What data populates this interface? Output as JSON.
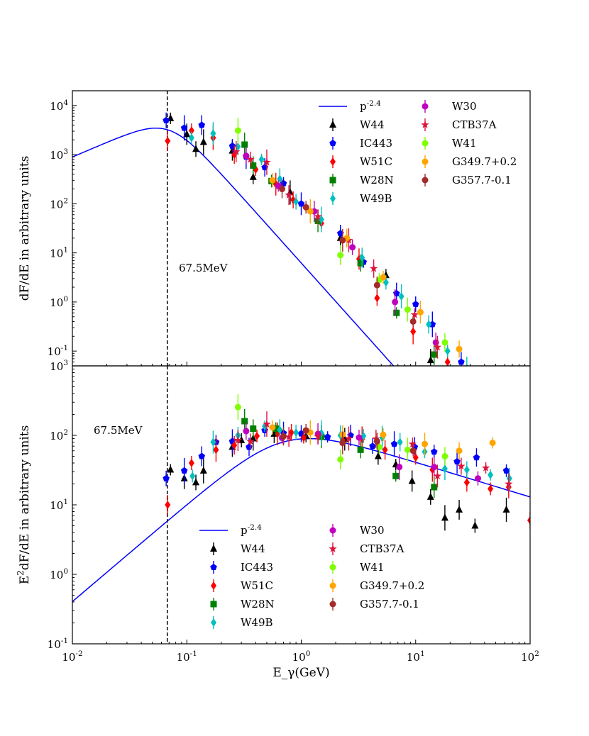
{
  "chart_data": [
    {
      "type": "scatter",
      "panel": "top",
      "ylabel": "dF/dE in arbitrary units",
      "xlabel": "",
      "xscale": "log",
      "yscale": "log",
      "xlim": [
        0.01,
        100
      ],
      "ylim": [
        0.05,
        20000
      ],
      "x_ticks": [
        "10^{-2}",
        "10^{-1}",
        "10^{0}",
        "10^{1}",
        "10^{2}"
      ],
      "y_ticks": [
        {
          "value": 0.1,
          "label": "10^{-1}"
        },
        {
          "value": 1,
          "label": "10^{0}"
        },
        {
          "value": 10,
          "label": "10^{1}"
        },
        {
          "value": 100,
          "label": "10^{2}"
        },
        {
          "value": 1000,
          "label": "10^{3}"
        },
        {
          "value": 10000,
          "label": "10^{4}"
        }
      ],
      "cutoff_energy_gev": 0.0675,
      "annotation": "67.5MeV",
      "legend_position": "top-right",
      "model": {
        "name": "p^{-2.4}",
        "color": "#0000ff",
        "type": "line"
      },
      "series": [
        {
          "name": "W44",
          "marker": "triangle",
          "color": "#000000",
          "points": [
            [
              0.072,
              5500
            ],
            [
              0.1,
              2600
            ],
            [
              0.12,
              1300
            ],
            [
              0.14,
              1800
            ],
            [
              0.25,
              1200
            ],
            [
              0.38,
              350
            ],
            [
              0.8,
              170
            ],
            [
              2.2,
              20
            ],
            [
              5.5,
              3.5
            ],
            [
              13.5,
              0.065
            ]
          ]
        },
        {
          "name": "IC443",
          "marker": "pentagon",
          "color": "#0000ff",
          "points": [
            [
              0.066,
              5000
            ],
            [
              0.095,
              3500
            ],
            [
              0.135,
              4000
            ],
            [
              0.25,
              1500
            ],
            [
              0.33,
              900
            ],
            [
              0.48,
              550
            ],
            [
              0.7,
              260
            ],
            [
              1.0,
              100
            ],
            [
              2.2,
              25
            ],
            [
              3.5,
              6.5
            ],
            [
              6.8,
              1.5
            ],
            [
              10,
              0.9
            ],
            [
              14,
              0.35
            ],
            [
              25,
              0.06
            ]
          ]
        },
        {
          "name": "W51C",
          "marker": "diamond",
          "color": "#ff0000",
          "points": [
            [
              0.068,
              1900
            ],
            [
              0.11,
              3100
            ],
            [
              0.17,
              2200
            ],
            [
              0.26,
              1000
            ],
            [
              0.4,
              500
            ],
            [
              0.6,
              250
            ],
            [
              0.85,
              120
            ],
            [
              1.5,
              40
            ],
            [
              3.2,
              7.5
            ],
            [
              4.6,
              1.2
            ],
            [
              9.5,
              0.25
            ],
            [
              19,
              0.06
            ]
          ]
        },
        {
          "name": "W28N",
          "marker": "square",
          "color": "#008000",
          "points": [
            [
              0.32,
              1600
            ],
            [
              0.38,
              600
            ],
            [
              0.55,
              290
            ],
            [
              1.4,
              45
            ],
            [
              3.3,
              6.2
            ],
            [
              6.8,
              0.6
            ],
            [
              14.5,
              0.085
            ]
          ]
        },
        {
          "name": "W49B",
          "marker": "diamond",
          "color": "#00bfbf",
          "points": [
            [
              0.11,
              2200
            ],
            [
              0.17,
              2700
            ],
            [
              0.28,
              1450
            ],
            [
              0.45,
              800
            ],
            [
              0.65,
              320
            ],
            [
              0.9,
              110
            ],
            [
              1.5,
              48
            ],
            [
              3.4,
              8
            ],
            [
              5.5,
              2.5
            ],
            [
              7.5,
              1.3
            ],
            [
              13,
              0.35
            ],
            [
              19,
              0.1
            ],
            [
              28,
              0.045
            ]
          ]
        },
        {
          "name": "W30",
          "marker": "circle",
          "color": "#bf00bf",
          "points": [
            [
              0.33,
              950
            ],
            [
              0.63,
              230
            ],
            [
              1.3,
              70
            ],
            [
              2.8,
              13
            ],
            [
              6.6,
              1.0
            ],
            [
              15,
              0.15
            ]
          ]
        },
        {
          "name": "CTB37A",
          "marker": "star",
          "color": "#dc143c",
          "points": [
            [
              0.27,
              1150
            ],
            [
              0.36,
              800
            ],
            [
              0.5,
              700
            ],
            [
              0.78,
              150
            ],
            [
              1.4,
              55
            ],
            [
              2.6,
              18
            ],
            [
              4.3,
              4.8
            ],
            [
              9.8,
              0.55
            ],
            [
              15.5,
              0.12
            ]
          ]
        },
        {
          "name": "W41",
          "marker": "circle",
          "color": "#7fff00",
          "points": [
            [
              0.28,
              3100
            ],
            [
              2.2,
              9
            ],
            [
              4.8,
              2.8
            ],
            [
              8.5,
              0.7
            ],
            [
              18,
              0.15
            ]
          ]
        },
        {
          "name": "G349.7+0.2",
          "marker": "circle",
          "color": "#ffa500",
          "points": [
            [
              0.56,
              300
            ],
            [
              1.2,
              70
            ],
            [
              2.5,
              20
            ],
            [
              5.2,
              3.2
            ],
            [
              11,
              0.62
            ],
            [
              24,
              0.11
            ]
          ]
        },
        {
          "name": "G357.7-0.1",
          "marker": "circle",
          "color": "#a52a2a",
          "points": [
            [
              0.68,
              200
            ],
            [
              1.1,
              85
            ],
            [
              2.3,
              18
            ],
            [
              4.6,
              2.2
            ],
            [
              9.5,
              0.4
            ]
          ]
        }
      ]
    },
    {
      "type": "scatter",
      "panel": "bottom",
      "ylabel": "E^2dF/dE in arbitrary units",
      "xlabel": "E_γ(GeV)",
      "xscale": "log",
      "yscale": "log",
      "xlim": [
        0.01,
        100
      ],
      "ylim": [
        0.1,
        1000
      ],
      "x_ticks": [
        "10^{-2}",
        "10^{-1}",
        "10^{0}",
        "10^{1}",
        "10^{2}"
      ],
      "y_ticks": [
        {
          "value": 0.1,
          "label": "10^{-1}"
        },
        {
          "value": 1,
          "label": "10^{0}"
        },
        {
          "value": 10,
          "label": "10^{1}"
        },
        {
          "value": 100,
          "label": "10^{2}"
        },
        {
          "value": 1000,
          "label": "10^{3}"
        }
      ],
      "cutoff_energy_gev": 0.0675,
      "annotation": "67.5MeV",
      "legend_position": "lower-center",
      "model": {
        "name": "p^{-2.4}",
        "color": "#0000ff",
        "type": "line"
      },
      "series": [
        {
          "name": "W44",
          "marker": "triangle",
          "color": "#000000",
          "points": [
            [
              0.072,
              32
            ],
            [
              0.095,
              24
            ],
            [
              0.12,
              21
            ],
            [
              0.14,
              31
            ],
            [
              0.25,
              68
            ],
            [
              0.3,
              85
            ],
            [
              0.38,
              90
            ],
            [
              0.58,
              105
            ],
            [
              1.1,
              98
            ],
            [
              2.4,
              88
            ],
            [
              4.7,
              50
            ],
            [
              6.7,
              38
            ],
            [
              9.3,
              22
            ],
            [
              13.5,
              13
            ],
            [
              18,
              6.5
            ],
            [
              24,
              8.5
            ],
            [
              33,
              5
            ],
            [
              62,
              8.5
            ]
          ]
        },
        {
          "name": "IC443",
          "marker": "pentagon",
          "color": "#0000ff",
          "points": [
            [
              0.066,
              24
            ],
            [
              0.095,
              31
            ],
            [
              0.135,
              50
            ],
            [
              0.18,
              80
            ],
            [
              0.25,
              82
            ],
            [
              0.35,
              68
            ],
            [
              0.48,
              118
            ],
            [
              0.7,
              108
            ],
            [
              1.0,
              106
            ],
            [
              1.7,
              95
            ],
            [
              2.7,
              100
            ],
            [
              4.2,
              70
            ],
            [
              6.5,
              75
            ],
            [
              9.8,
              68
            ],
            [
              14.5,
              58
            ],
            [
              23,
              42
            ],
            [
              34,
              48
            ],
            [
              62,
              31
            ]
          ]
        },
        {
          "name": "W51C",
          "marker": "diamond",
          "color": "#ff0000",
          "points": [
            [
              0.068,
              10
            ],
            [
              0.11,
              40
            ],
            [
              0.18,
              62
            ],
            [
              0.26,
              72
            ],
            [
              0.41,
              98
            ],
            [
              0.62,
              105
            ],
            [
              0.82,
              110
            ],
            [
              1.05,
              92
            ],
            [
              1.5,
              98
            ],
            [
              2.3,
              85
            ],
            [
              3.4,
              88
            ],
            [
              5.4,
              62
            ],
            [
              10,
              48
            ],
            [
              14,
              32
            ],
            [
              28,
              21
            ],
            [
              45,
              17
            ],
            [
              65,
              18
            ],
            [
              100,
              6
            ]
          ]
        },
        {
          "name": "W28N",
          "marker": "square",
          "color": "#008000",
          "points": [
            [
              0.32,
              160
            ],
            [
              0.38,
              125
            ],
            [
              0.6,
              125
            ],
            [
              1.5,
              95
            ],
            [
              3.3,
              62
            ],
            [
              6.7,
              26
            ],
            [
              14.5,
              18
            ]
          ]
        },
        {
          "name": "W49B",
          "marker": "diamond",
          "color": "#00bfbf",
          "points": [
            [
              0.112,
              26
            ],
            [
              0.17,
              80
            ],
            [
              0.28,
              100
            ],
            [
              0.48,
              135
            ],
            [
              0.65,
              120
            ],
            [
              0.9,
              110
            ],
            [
              1.5,
              108
            ],
            [
              2.2,
              100
            ],
            [
              3.5,
              98
            ],
            [
              5.1,
              92
            ],
            [
              7.3,
              80
            ],
            [
              12,
              58
            ],
            [
              18,
              33
            ],
            [
              28,
              32
            ],
            [
              45,
              27
            ],
            [
              66,
              24
            ]
          ]
        },
        {
          "name": "W30",
          "marker": "circle",
          "color": "#bf00bf",
          "points": [
            [
              0.33,
              115
            ],
            [
              0.68,
              92
            ],
            [
              1.4,
              105
            ],
            [
              3.2,
              93
            ],
            [
              7.2,
              35
            ],
            [
              14.5,
              35
            ],
            [
              35,
              24
            ]
          ]
        },
        {
          "name": "CTB37A",
          "marker": "star",
          "color": "#dc143c",
          "points": [
            [
              0.28,
              85
            ],
            [
              0.36,
              82
            ],
            [
              0.5,
              145
            ],
            [
              0.78,
              95
            ],
            [
              1.4,
              96
            ],
            [
              2.6,
              90
            ],
            [
              4.5,
              89
            ],
            [
              9.4,
              75
            ],
            [
              15.5,
              26
            ],
            [
              25,
              36
            ],
            [
              41,
              34
            ],
            [
              65,
              20
            ]
          ]
        },
        {
          "name": "W41",
          "marker": "circle",
          "color": "#7fff00",
          "points": [
            [
              0.28,
              255
            ],
            [
              2.2,
              45
            ],
            [
              4.8,
              68
            ],
            [
              8.5,
              62
            ],
            [
              18,
              50
            ]
          ]
        },
        {
          "name": "G349.7+0.2",
          "marker": "circle",
          "color": "#ffa500",
          "points": [
            [
              0.56,
              130
            ],
            [
              1.2,
              110
            ],
            [
              2.3,
              103
            ],
            [
              5.2,
              102
            ],
            [
              12,
              75
            ],
            [
              24,
              60
            ],
            [
              47,
              78
            ]
          ]
        },
        {
          "name": "G357.7-0.1",
          "marker": "circle",
          "color": "#a52a2a",
          "points": [
            [
              0.7,
              97
            ],
            [
              1.1,
              118
            ],
            [
              2.3,
              78
            ],
            [
              4.6,
              82
            ],
            [
              9.5,
              60
            ]
          ]
        }
      ]
    }
  ]
}
